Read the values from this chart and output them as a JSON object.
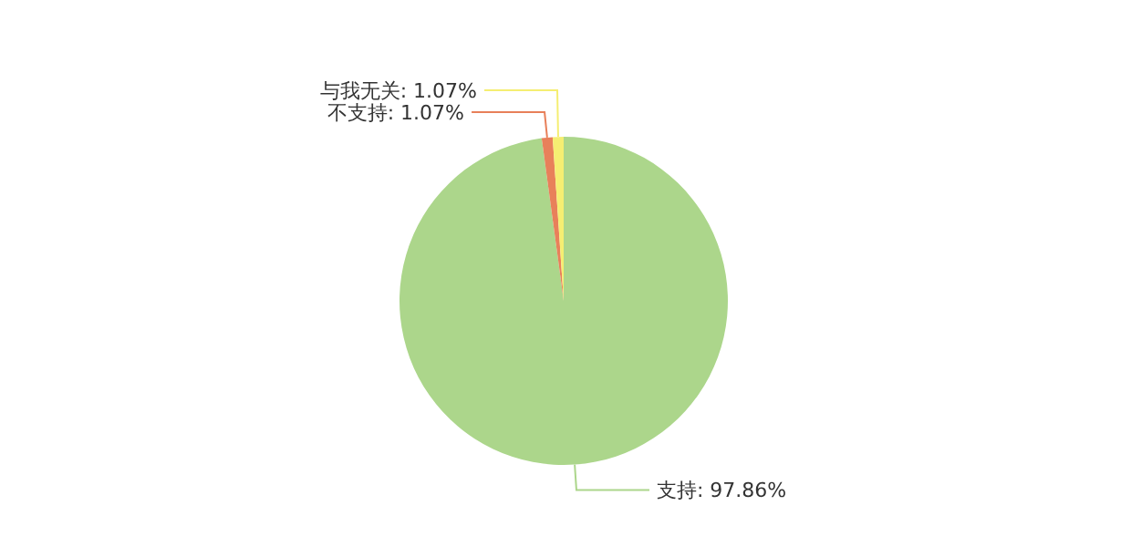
{
  "chart_data": {
    "type": "pie",
    "categories": [
      "支持",
      "不支持",
      "与我无关"
    ],
    "values": [
      97.86,
      1.07,
      1.07
    ],
    "value_labels": [
      "97.86%",
      "1.07%",
      "1.07%"
    ],
    "colors": [
      "#acd68b",
      "#e8805a",
      "#f5ee72"
    ],
    "legend": false
  }
}
